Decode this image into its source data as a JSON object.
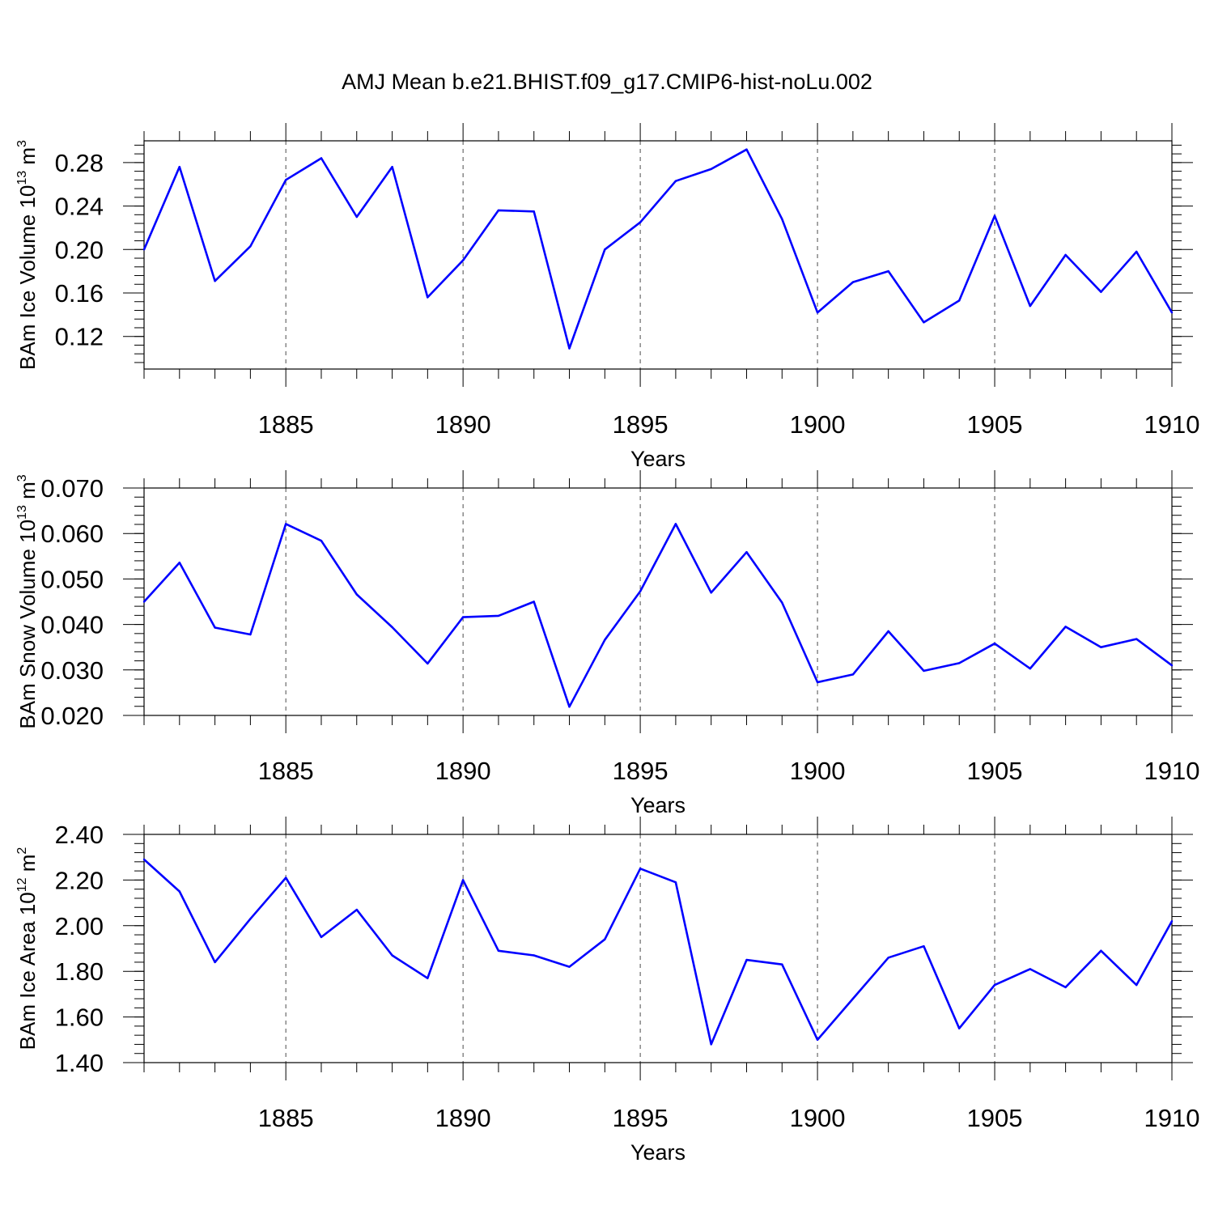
{
  "title": "AMJ Mean b.e21.BHIST.f09_g17.CMIP6-hist-noLu.002",
  "colors": {
    "series": "#0000ff",
    "frame": "#000000",
    "grid": "#000000"
  },
  "chart_data": [
    {
      "type": "line",
      "ylabel": {
        "main": "BAm Ice Volume 10",
        "exp": "13",
        "unit": " m",
        "unit_exp": "3"
      },
      "xlabel": "Years",
      "xlim": [
        1881,
        1910
      ],
      "ylim": [
        0.09,
        0.3
      ],
      "x_ticks": [
        "1885",
        "1890",
        "1895",
        "1900",
        "1905",
        "1910"
      ],
      "y_ticks": [
        "0.12",
        "0.16",
        "0.20",
        "0.24",
        "0.28"
      ],
      "grid": "vertical dashed at major x ticks",
      "x": [
        1881,
        1882,
        1883,
        1884,
        1885,
        1886,
        1887,
        1888,
        1889,
        1890,
        1891,
        1892,
        1893,
        1894,
        1895,
        1896,
        1897,
        1898,
        1899,
        1900,
        1901,
        1902,
        1903,
        1904,
        1905,
        1906,
        1907,
        1908,
        1909,
        1910
      ],
      "values": [
        0.2,
        0.276,
        0.171,
        0.203,
        0.264,
        0.284,
        0.23,
        0.276,
        0.156,
        0.19,
        0.236,
        0.235,
        0.109,
        0.2,
        0.225,
        0.263,
        0.274,
        0.292,
        0.228,
        0.142,
        0.17,
        0.18,
        0.133,
        0.153,
        0.231,
        0.148,
        0.195,
        0.161,
        0.198,
        0.142
      ]
    },
    {
      "type": "line",
      "ylabel": {
        "main": "BAm Snow Volume 10",
        "exp": "13",
        "unit": " m",
        "unit_exp": "3"
      },
      "xlabel": "Years",
      "xlim": [
        1881,
        1910
      ],
      "ylim": [
        0.02,
        0.07
      ],
      "x_ticks": [
        "1885",
        "1890",
        "1895",
        "1900",
        "1905",
        "1910"
      ],
      "y_ticks": [
        "0.020",
        "0.030",
        "0.040",
        "0.050",
        "0.060",
        "0.070"
      ],
      "grid": "vertical dashed at major x ticks",
      "x": [
        1881,
        1882,
        1883,
        1884,
        1885,
        1886,
        1887,
        1888,
        1889,
        1890,
        1891,
        1892,
        1893,
        1894,
        1895,
        1896,
        1897,
        1898,
        1899,
        1900,
        1901,
        1902,
        1903,
        1904,
        1905,
        1906,
        1907,
        1908,
        1909,
        1910
      ],
      "values": [
        0.045,
        0.0536,
        0.0393,
        0.0378,
        0.0621,
        0.0584,
        0.0466,
        0.0394,
        0.0314,
        0.0416,
        0.0419,
        0.045,
        0.0219,
        0.0366,
        0.0473,
        0.0621,
        0.047,
        0.0559,
        0.0448,
        0.0273,
        0.029,
        0.0385,
        0.0298,
        0.0315,
        0.0358,
        0.0303,
        0.0395,
        0.035,
        0.0368,
        0.031
      ]
    },
    {
      "type": "line",
      "ylabel": {
        "main": "BAm Ice Area 10",
        "exp": "12",
        "unit": " m",
        "unit_exp": "2"
      },
      "xlabel": "Years",
      "xlim": [
        1881,
        1910
      ],
      "ylim": [
        1.4,
        2.4
      ],
      "x_ticks": [
        "1885",
        "1890",
        "1895",
        "1900",
        "1905",
        "1910"
      ],
      "y_ticks": [
        "1.40",
        "1.60",
        "1.80",
        "2.00",
        "2.20",
        "2.40"
      ],
      "grid": "vertical dashed at major x ticks",
      "x": [
        1881,
        1882,
        1883,
        1884,
        1885,
        1886,
        1887,
        1888,
        1889,
        1890,
        1891,
        1892,
        1893,
        1894,
        1895,
        1896,
        1897,
        1898,
        1899,
        1900,
        1901,
        1902,
        1903,
        1904,
        1905,
        1906,
        1907,
        1908,
        1909,
        1910
      ],
      "values": [
        2.29,
        2.15,
        1.84,
        2.03,
        2.21,
        1.95,
        2.07,
        1.87,
        1.77,
        2.2,
        1.89,
        1.87,
        1.82,
        1.94,
        2.25,
        2.19,
        1.48,
        1.85,
        1.83,
        1.5,
        1.68,
        1.86,
        1.91,
        1.55,
        1.74,
        1.81,
        1.73,
        1.89,
        1.74,
        2.02
      ]
    }
  ]
}
